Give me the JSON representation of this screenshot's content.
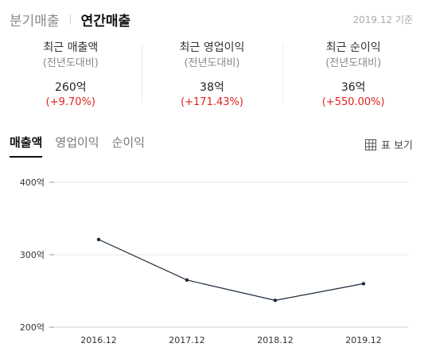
{
  "top_tabs": [
    {
      "label": "분기매출",
      "active": false
    },
    {
      "label": "연간매출",
      "active": true
    }
  ],
  "basis_label": "2019.12 기준",
  "summary": [
    {
      "title": "최근 매출액",
      "subtitle": "(전년도대비)",
      "value": "260억",
      "change": "(+9.70%)"
    },
    {
      "title": "최근 영업이익",
      "subtitle": "(전년도대비)",
      "value": "38억",
      "change": "(+171.43%)"
    },
    {
      "title": "최근 순이익",
      "subtitle": "(전년도대비)",
      "value": "36억",
      "change": "(+550.00%)"
    }
  ],
  "sub_tabs": [
    {
      "label": "매출액",
      "active": true
    },
    {
      "label": "영업이익",
      "active": false
    },
    {
      "label": "순이익",
      "active": false
    }
  ],
  "table_view_label": "표 보기",
  "colors": {
    "accent": "#111111",
    "positive_change": "#e0241b",
    "line": "#1b2a3a"
  },
  "chart_data": {
    "type": "line",
    "categories": [
      "2016.12",
      "2017.12",
      "2018.12",
      "2019.12"
    ],
    "series": [
      {
        "values": [
          321,
          265,
          237,
          260
        ]
      }
    ],
    "y_ticks": [
      200,
      300,
      400
    ],
    "y_tick_labels": [
      "200억",
      "300억",
      "400억"
    ],
    "ylim": [
      200,
      400
    ],
    "grid": "horizontal"
  }
}
